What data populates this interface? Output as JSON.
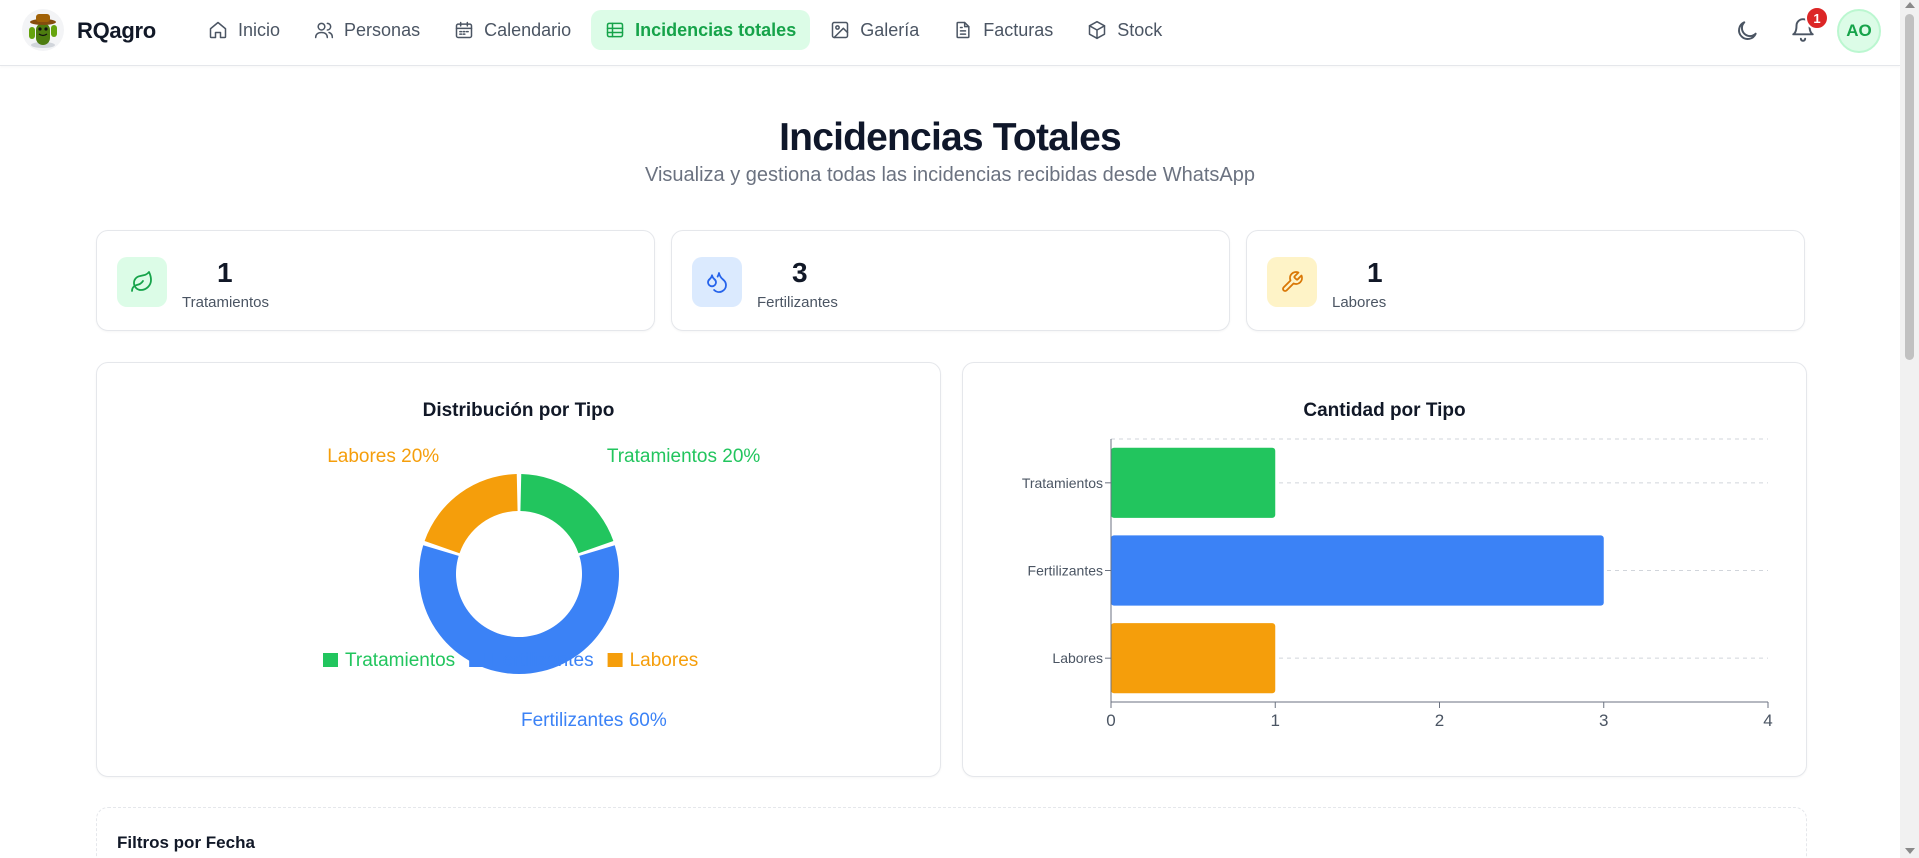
{
  "app": {
    "brand": "RQagro",
    "nav": [
      {
        "label": "Inicio",
        "icon": "home-icon"
      },
      {
        "label": "Personas",
        "icon": "users-icon"
      },
      {
        "label": "Calendario",
        "icon": "calendar-icon"
      },
      {
        "label": "Incidencias totales",
        "icon": "table-icon",
        "active": true
      },
      {
        "label": "Galería",
        "icon": "image-icon"
      },
      {
        "label": "Facturas",
        "icon": "file-text-icon"
      },
      {
        "label": "Stock",
        "icon": "box-icon"
      }
    ],
    "notifications_count": "1",
    "avatar_initials": "AO",
    "accent_color": "#16a34a"
  },
  "page": {
    "title": "Incidencias Totales",
    "subtitle": "Visualiza y gestiona todas las incidencias recibidas desde WhatsApp"
  },
  "stats": [
    {
      "value": "1",
      "label": "Tratamientos",
      "icon": "leaf-icon",
      "color": "#16a34a",
      "bg": "#dcfce7"
    },
    {
      "value": "3",
      "label": "Fertilizantes",
      "icon": "droplets-icon",
      "color": "#2563eb",
      "bg": "#dbeafe"
    },
    {
      "value": "1",
      "label": "Labores",
      "icon": "wrench-icon",
      "color": "#d97706",
      "bg": "#fef3c7"
    }
  ],
  "chart_data": [
    {
      "type": "pie",
      "title": "Distribución por Tipo",
      "categories": [
        "Tratamientos",
        "Fertilizantes",
        "Labores"
      ],
      "values": [
        1,
        3,
        1
      ],
      "slice_labels": [
        "Tratamientos 20%",
        "Fertilizantes 60%",
        "Labores 20%"
      ],
      "colors": [
        "#22c55e",
        "#3b82f6",
        "#f59e0b"
      ],
      "legend_position": "bottom"
    },
    {
      "type": "bar",
      "orientation": "horizontal",
      "title": "Cantidad por Tipo",
      "categories": [
        "Tratamientos",
        "Fertilizantes",
        "Labores"
      ],
      "values": [
        1,
        3,
        1
      ],
      "colors": [
        "#22c55e",
        "#3b82f6",
        "#f59e0b"
      ],
      "xlim": [
        0,
        4
      ],
      "xticks": [
        "0",
        "1",
        "2",
        "3",
        "4"
      ],
      "grid": true
    }
  ],
  "filters": {
    "title": "Filtros por Fecha"
  }
}
